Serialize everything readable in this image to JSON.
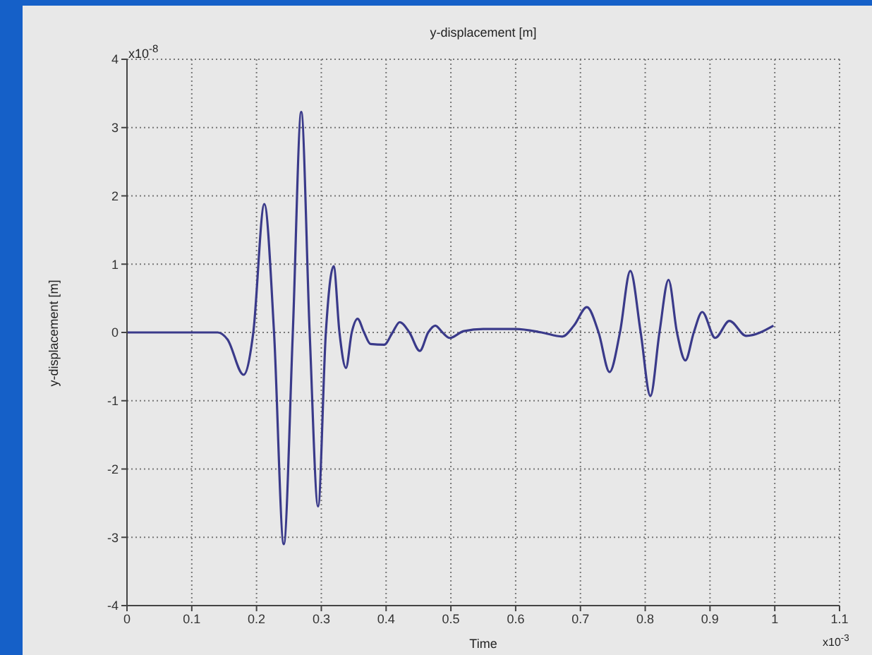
{
  "chart_data": {
    "type": "line",
    "title": "y-displacement [m]",
    "xlabel": "Time",
    "ylabel": "y-displacement [m]",
    "annotations": [
      "x10$^{-8}$",
      "x10$^{-3}$"
    ],
    "xlim": [
      0,
      1.1
    ],
    "xticks": [
      0,
      0.1,
      0.2,
      0.3,
      0.4,
      0.5,
      0.6,
      0.7,
      0.8,
      0.9,
      1,
      1.1
    ],
    "ylim": [
      -4,
      4
    ],
    "yticks": [
      -4,
      -3,
      -2,
      -1,
      0,
      1,
      2,
      3,
      4
    ],
    "grid": true,
    "legend": false,
    "marker": "none",
    "line_style": "solid",
    "series": [
      {
        "color": "#3a3a8a",
        "x": [
          0,
          0.1,
          0.14,
          0.155,
          0.18,
          0.195,
          0.212,
          0.227,
          0.242,
          0.256,
          0.269,
          0.282,
          0.295,
          0.307,
          0.319,
          0.328,
          0.338,
          0.347,
          0.356,
          0.366,
          0.376,
          0.397,
          0.41,
          0.421,
          0.436,
          0.452,
          0.465,
          0.476,
          0.487,
          0.498,
          0.52,
          0.55,
          0.6,
          0.64,
          0.672,
          0.69,
          0.71,
          0.728,
          0.745,
          0.761,
          0.777,
          0.793,
          0.808,
          0.822,
          0.836,
          0.849,
          0.862,
          0.875,
          0.888,
          0.908,
          0.93,
          0.956,
          0.998
        ],
        "values": [
          0,
          0,
          0,
          -0.1,
          -0.62,
          0,
          1.88,
          0,
          -3.1,
          0,
          3.23,
          0,
          -2.55,
          0,
          0.97,
          0,
          -0.52,
          0,
          0.2,
          0,
          -0.17,
          -0.18,
          0,
          0.15,
          0,
          -0.27,
          0,
          0.1,
          0,
          -0.08,
          0.02,
          0.05,
          0.05,
          0,
          -0.06,
          0.1,
          0.37,
          0,
          -0.58,
          0,
          0.9,
          0,
          -0.93,
          0,
          0.77,
          0,
          -0.41,
          0,
          0.3,
          -0.08,
          0.17,
          -0.05,
          0.1
        ]
      }
    ]
  }
}
